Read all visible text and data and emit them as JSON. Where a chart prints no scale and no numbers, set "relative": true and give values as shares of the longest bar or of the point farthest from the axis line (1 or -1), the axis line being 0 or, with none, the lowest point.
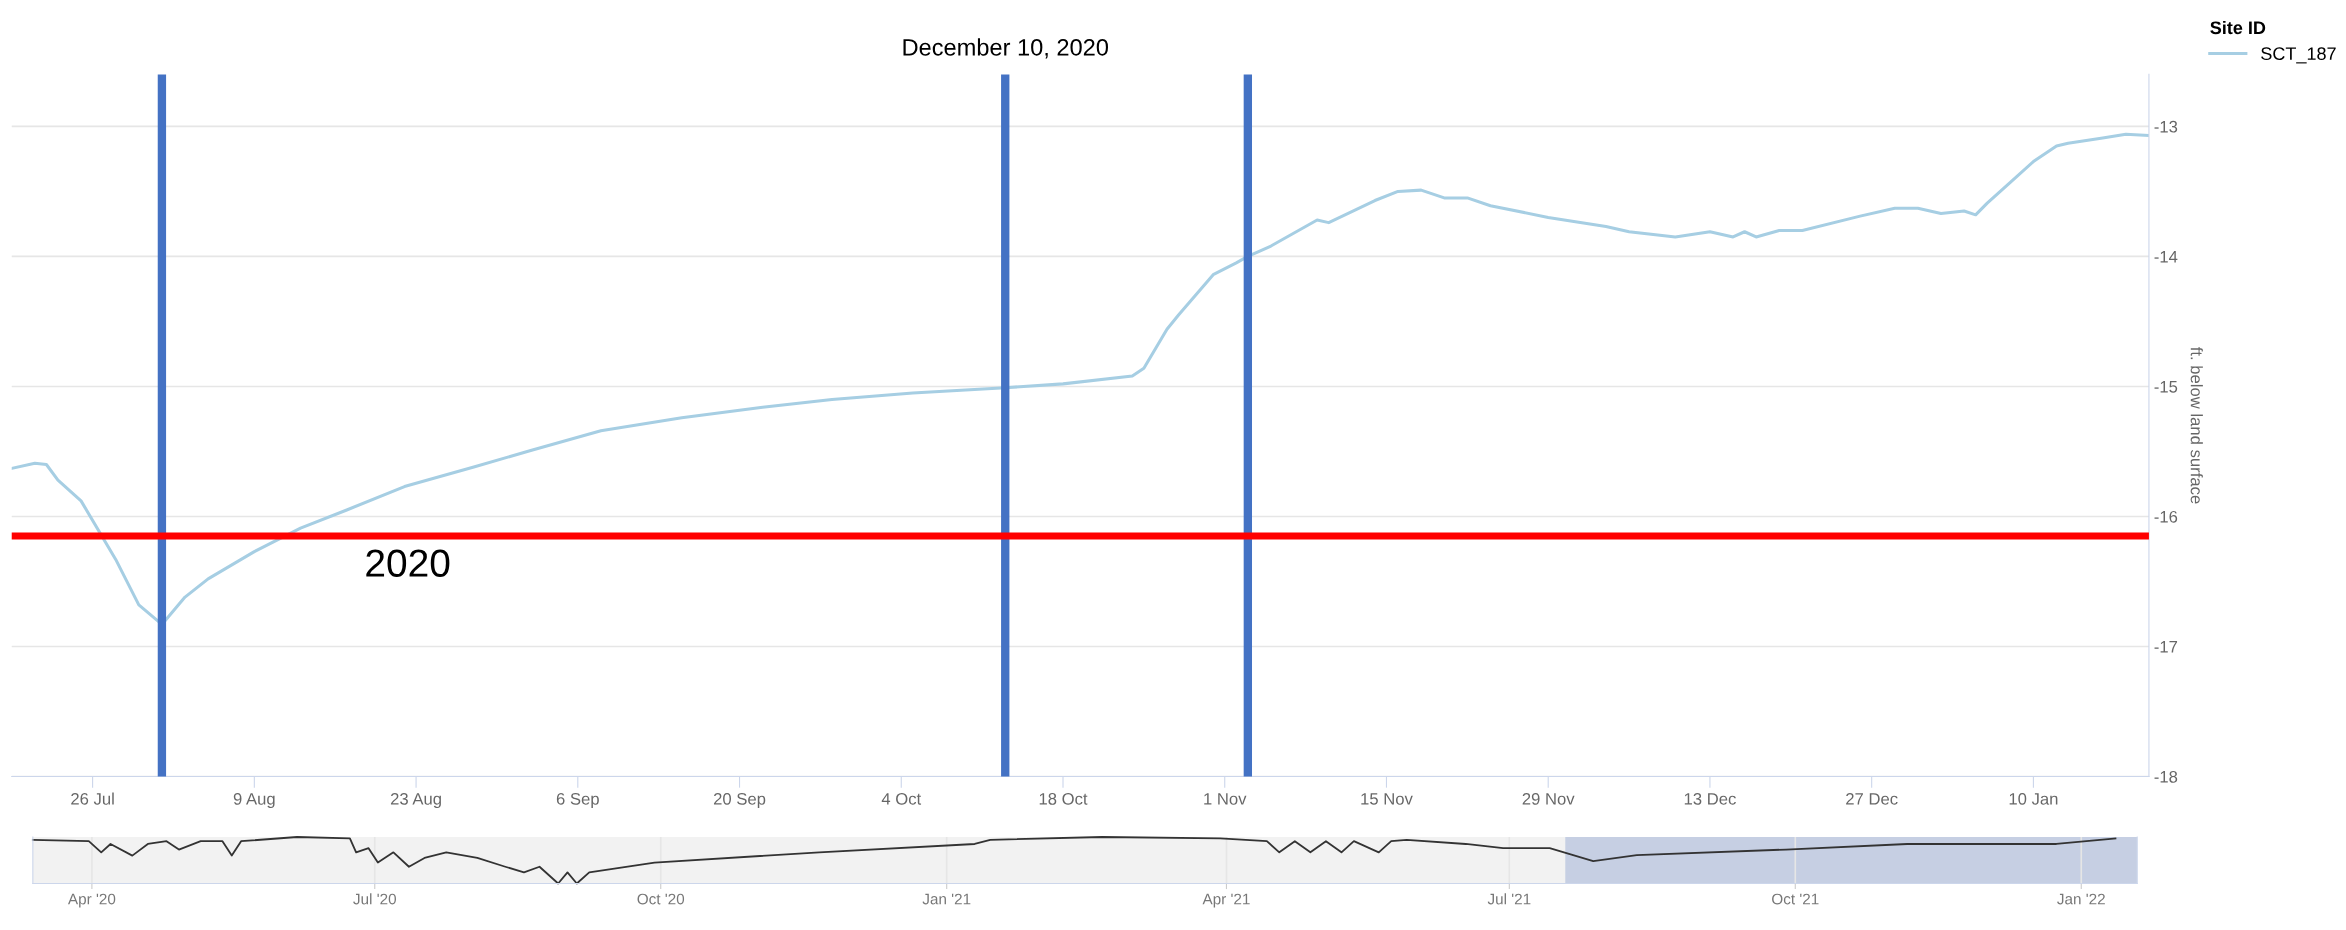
{
  "chart_data": [
    {
      "type": "line",
      "ylabel": "ft. below land surface",
      "legend_title": "Site ID",
      "legend": "top right",
      "grid": "y",
      "xlim": [
        "2021-07-19",
        "2022-01-20"
      ],
      "xticks": [
        {
          "value": "2021-07-26",
          "label": "26 Jul"
        },
        {
          "value": "2021-08-09",
          "label": "9 Aug"
        },
        {
          "value": "2021-08-23",
          "label": "23 Aug"
        },
        {
          "value": "2021-09-06",
          "label": "6 Sep"
        },
        {
          "value": "2021-09-20",
          "label": "20 Sep"
        },
        {
          "value": "2021-10-04",
          "label": "4 Oct"
        },
        {
          "value": "2021-10-18",
          "label": "18 Oct"
        },
        {
          "value": "2021-11-01",
          "label": "1 Nov"
        },
        {
          "value": "2021-11-15",
          "label": "15 Nov"
        },
        {
          "value": "2021-11-29",
          "label": "29 Nov"
        },
        {
          "value": "2021-12-13",
          "label": "13 Dec"
        },
        {
          "value": "2021-12-27",
          "label": "27 Dec"
        },
        {
          "value": "2022-01-10",
          "label": "10 Jan"
        }
      ],
      "ylim": [
        -18,
        -12.6
      ],
      "yticks": [
        -18,
        -17,
        -16,
        -15,
        -14,
        -13
      ],
      "series": [
        {
          "name": "SCT_187",
          "color": "#a6cee3",
          "x": [
            "2021-07-19",
            "2021-07-21",
            "2021-07-22",
            "2021-07-23",
            "2021-07-25",
            "2021-07-28",
            "2021-07-30",
            "2021-08-01",
            "2021-08-03",
            "2021-08-05",
            "2021-08-09",
            "2021-08-13",
            "2021-08-17",
            "2021-08-22",
            "2021-08-28",
            "2021-09-02",
            "2021-09-08",
            "2021-09-15",
            "2021-09-22",
            "2021-09-28",
            "2021-10-05",
            "2021-10-13",
            "2021-10-18",
            "2021-10-24",
            "2021-10-25",
            "2021-10-27",
            "2021-10-28",
            "2021-10-31",
            "2021-11-02",
            "2021-11-03",
            "2021-11-05",
            "2021-11-09",
            "2021-11-10",
            "2021-11-14",
            "2021-11-16",
            "2021-11-18",
            "2021-11-20",
            "2021-11-22",
            "2021-11-24",
            "2021-11-29",
            "2021-12-04",
            "2021-12-06",
            "2021-12-10",
            "2021-12-13",
            "2021-12-15",
            "2021-12-16",
            "2021-12-17",
            "2021-12-19",
            "2021-12-21",
            "2021-12-26",
            "2021-12-29",
            "2021-12-31",
            "2022-01-02",
            "2022-01-04",
            "2022-01-05",
            "2022-01-06",
            "2022-01-08",
            "2022-01-10",
            "2022-01-12",
            "2022-01-13",
            "2022-01-16",
            "2022-01-18",
            "2022-01-20"
          ],
          "values": [
            -15.63,
            -15.59,
            -15.6,
            -15.72,
            -15.88,
            -16.33,
            -16.68,
            -16.83,
            -16.62,
            -16.48,
            -16.27,
            -16.09,
            -15.95,
            -15.77,
            -15.62,
            -15.49,
            -15.34,
            -15.24,
            -15.16,
            -15.1,
            -15.05,
            -15.01,
            -14.98,
            -14.92,
            -14.86,
            -14.56,
            -14.45,
            -14.14,
            -14.05,
            -14.0,
            -13.92,
            -13.72,
            -13.74,
            -13.57,
            -13.5,
            -13.49,
            -13.55,
            -13.55,
            -13.61,
            -13.7,
            -13.77,
            -13.81,
            -13.85,
            -13.81,
            -13.85,
            -13.81,
            -13.85,
            -13.8,
            -13.8,
            -13.69,
            -13.63,
            -13.63,
            -13.67,
            -13.65,
            -13.68,
            -13.59,
            -13.43,
            -13.27,
            -13.15,
            -13.13,
            -13.09,
            -13.06,
            -13.07
          ]
        }
      ],
      "ref_lines": [
        {
          "axis": "x",
          "value": "2021-08-01",
          "color": "#4472c4"
        },
        {
          "axis": "x",
          "value": "2021-10-13",
          "label": "December 10, 2020",
          "color": "#4472c4"
        },
        {
          "axis": "x",
          "value": "2021-11-03",
          "color": "#4472c4"
        },
        {
          "axis": "y",
          "value": -16.15,
          "color": "#ff0000"
        }
      ],
      "annotations": [
        "2020"
      ]
    },
    {
      "type": "line",
      "relative": true,
      "grid": "x",
      "xlim": [
        "2020-03-13",
        "2022-01-19"
      ],
      "xticks": [
        {
          "value": "2020-04-01",
          "label": "Apr '20"
        },
        {
          "value": "2020-07-01",
          "label": "Jul '20"
        },
        {
          "value": "2020-10-01",
          "label": "Oct '20"
        },
        {
          "value": "2021-01-01",
          "label": "Jan '21"
        },
        {
          "value": "2021-04-01",
          "label": "Apr '21"
        },
        {
          "value": "2021-07-01",
          "label": "Jul '21"
        },
        {
          "value": "2021-10-01",
          "label": "Oct '21"
        },
        {
          "value": "2022-01-01",
          "label": "Jan '22"
        }
      ],
      "series": [
        {
          "color": "#333333",
          "x": [
            "2020-03-13",
            "2020-03-31",
            "2020-04-04",
            "2020-04-07",
            "2020-04-14",
            "2020-04-19",
            "2020-04-25",
            "2020-04-29",
            "2020-05-06",
            "2020-05-13",
            "2020-05-16",
            "2020-05-19",
            "2020-06-06",
            "2020-06-23",
            "2020-06-25",
            "2020-06-29",
            "2020-07-02",
            "2020-07-07",
            "2020-07-12",
            "2020-07-17",
            "2020-07-24",
            "2020-08-03",
            "2020-08-12",
            "2020-08-18",
            "2020-08-23",
            "2020-08-29",
            "2020-09-01",
            "2020-09-04",
            "2020-09-08",
            "2020-09-29",
            "2020-11-21",
            "2021-01-10",
            "2021-01-15",
            "2021-02-20",
            "2021-03-30",
            "2021-04-14",
            "2021-04-18",
            "2021-04-23",
            "2021-04-28",
            "2021-05-03",
            "2021-05-08",
            "2021-05-12",
            "2021-05-20",
            "2021-05-24",
            "2021-05-29",
            "2021-06-17",
            "2021-06-29",
            "2021-07-14",
            "2021-07-28",
            "2021-08-11",
            "2021-09-28",
            "2021-11-06",
            "2021-12-24",
            "2022-01-12"
          ],
          "values": [
            0.94,
            0.91,
            0.67,
            0.85,
            0.6,
            0.85,
            0.91,
            0.73,
            0.91,
            0.91,
            0.6,
            0.91,
            1.0,
            0.97,
            0.67,
            0.76,
            0.45,
            0.67,
            0.36,
            0.55,
            0.67,
            0.55,
            0.36,
            0.24,
            0.36,
            0.0,
            0.24,
            0.0,
            0.24,
            0.45,
            0.67,
            0.85,
            0.94,
            1.0,
            0.97,
            0.91,
            0.67,
            0.91,
            0.67,
            0.91,
            0.67,
            0.91,
            0.67,
            0.91,
            0.94,
            0.85,
            0.76,
            0.76,
            0.48,
            0.61,
            0.73,
            0.85,
            0.85,
            0.97
          ]
        }
      ],
      "bands": [
        {
          "axis": "x",
          "from": "2021-07-19",
          "to": "2022-01-20",
          "color": "#c6cfe3"
        }
      ]
    }
  ]
}
